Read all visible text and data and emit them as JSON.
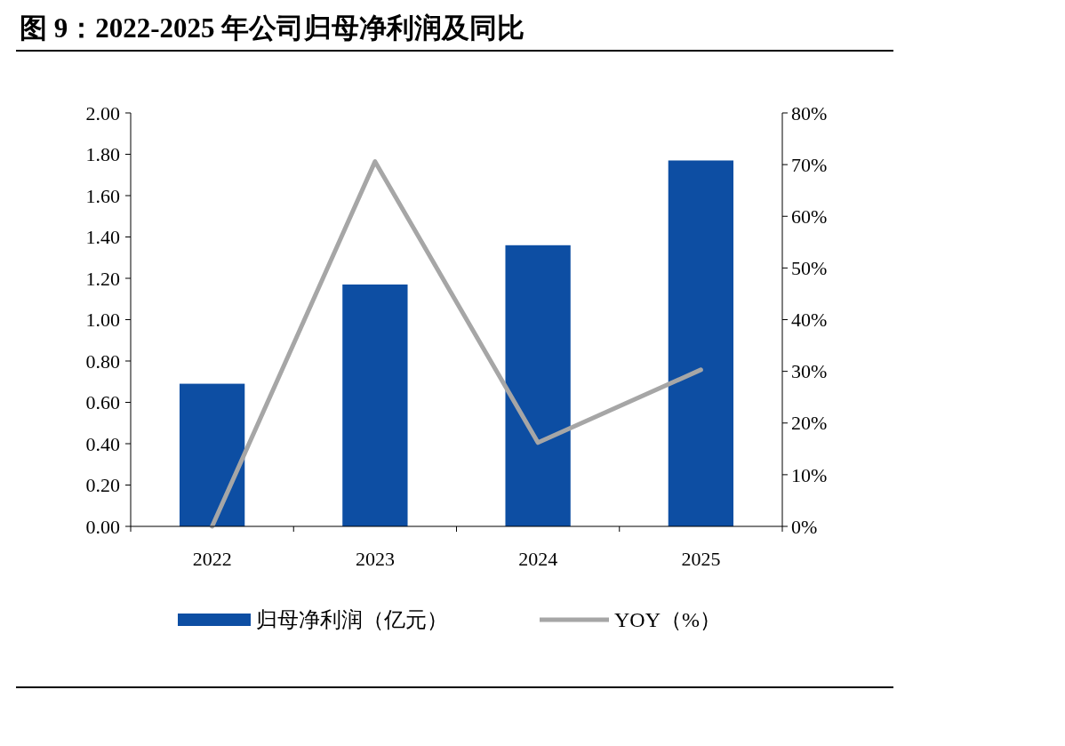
{
  "chart_data": {
    "type": "bar",
    "title": "图 9：2022-2025 年公司归母净利润及同比",
    "categories": [
      "2022",
      "2023",
      "2024",
      "2025"
    ],
    "series": [
      {
        "name": "归母净利润（亿元）",
        "color": "#0d4ea3",
        "values": [
          0.69,
          1.17,
          1.36,
          1.77
        ]
      },
      {
        "name": "YOY（%）",
        "type": "line",
        "axis": "y2",
        "color": "#a6a6a6",
        "values": [
          0,
          70.6,
          16.2,
          30.3
        ]
      }
    ],
    "ylim": [
      0,
      2
    ],
    "yticks": [
      {
        "value": 0,
        "label": "0.00"
      },
      {
        "value": 0.2,
        "label": "0.20"
      },
      {
        "value": 0.4,
        "label": "0.40"
      },
      {
        "value": 0.6,
        "label": "0.60"
      },
      {
        "value": 0.8,
        "label": "0.80"
      },
      {
        "value": 1,
        "label": "1.00"
      },
      {
        "value": 1.2,
        "label": "1.20"
      },
      {
        "value": 1.4,
        "label": "1.40"
      },
      {
        "value": 1.6,
        "label": "1.60"
      },
      {
        "value": 1.8,
        "label": "1.80"
      },
      {
        "value": 2,
        "label": "2.00"
      }
    ],
    "y2lim": [
      0,
      80
    ],
    "y2ticks": [
      {
        "value": 0,
        "label": "0%"
      },
      {
        "value": 10,
        "label": "10%"
      },
      {
        "value": 20,
        "label": "20%"
      },
      {
        "value": 30,
        "label": "30%"
      },
      {
        "value": 40,
        "label": "40%"
      },
      {
        "value": 50,
        "label": "50%"
      },
      {
        "value": 60,
        "label": "60%"
      },
      {
        "value": 70,
        "label": "70%"
      },
      {
        "value": 80,
        "label": "80%"
      }
    ],
    "legend": "bottom"
  }
}
